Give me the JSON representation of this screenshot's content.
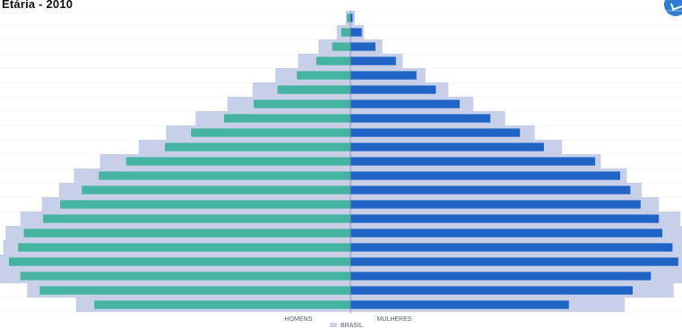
{
  "chart_data": {
    "type": "bar",
    "title": "Etária - 2010",
    "orientation": "horizontal-pyramid",
    "x_labels": [
      "HOMENS",
      "MULHERES"
    ],
    "legend": [
      {
        "name": "BRASIL",
        "color": "#c8cfe8"
      }
    ],
    "colors": {
      "men": "#45b3a0",
      "women": "#1f63c4",
      "reference": "#c8cfe8"
    },
    "series": [
      {
        "name": "HOMENS",
        "values": [
          0.3,
          0.8,
          1.6,
          3.0,
          4.7,
          6.4,
          8.5,
          11.1,
          14.0,
          16.3,
          19.7,
          22.1,
          23.6,
          25.5,
          27.0,
          28.7,
          29.2,
          30.0,
          29.0,
          27.3,
          22.5
        ]
      },
      {
        "name": "MULHERES",
        "values": [
          0.2,
          1.0,
          2.2,
          4.0,
          5.8,
          7.5,
          9.6,
          12.3,
          14.9,
          17.0,
          21.5,
          23.7,
          24.6,
          25.5,
          27.1,
          27.4,
          28.3,
          28.8,
          26.4,
          24.8,
          19.2
        ]
      },
      {
        "name": "BRASIL",
        "values": [
          0.4,
          1.2,
          2.8,
          4.6,
          6.6,
          8.6,
          10.8,
          13.6,
          16.2,
          18.6,
          22.0,
          24.3,
          25.6,
          27.1,
          29.0,
          30.3,
          30.5,
          31.0,
          30.9,
          28.4,
          24.1
        ]
      }
    ]
  }
}
